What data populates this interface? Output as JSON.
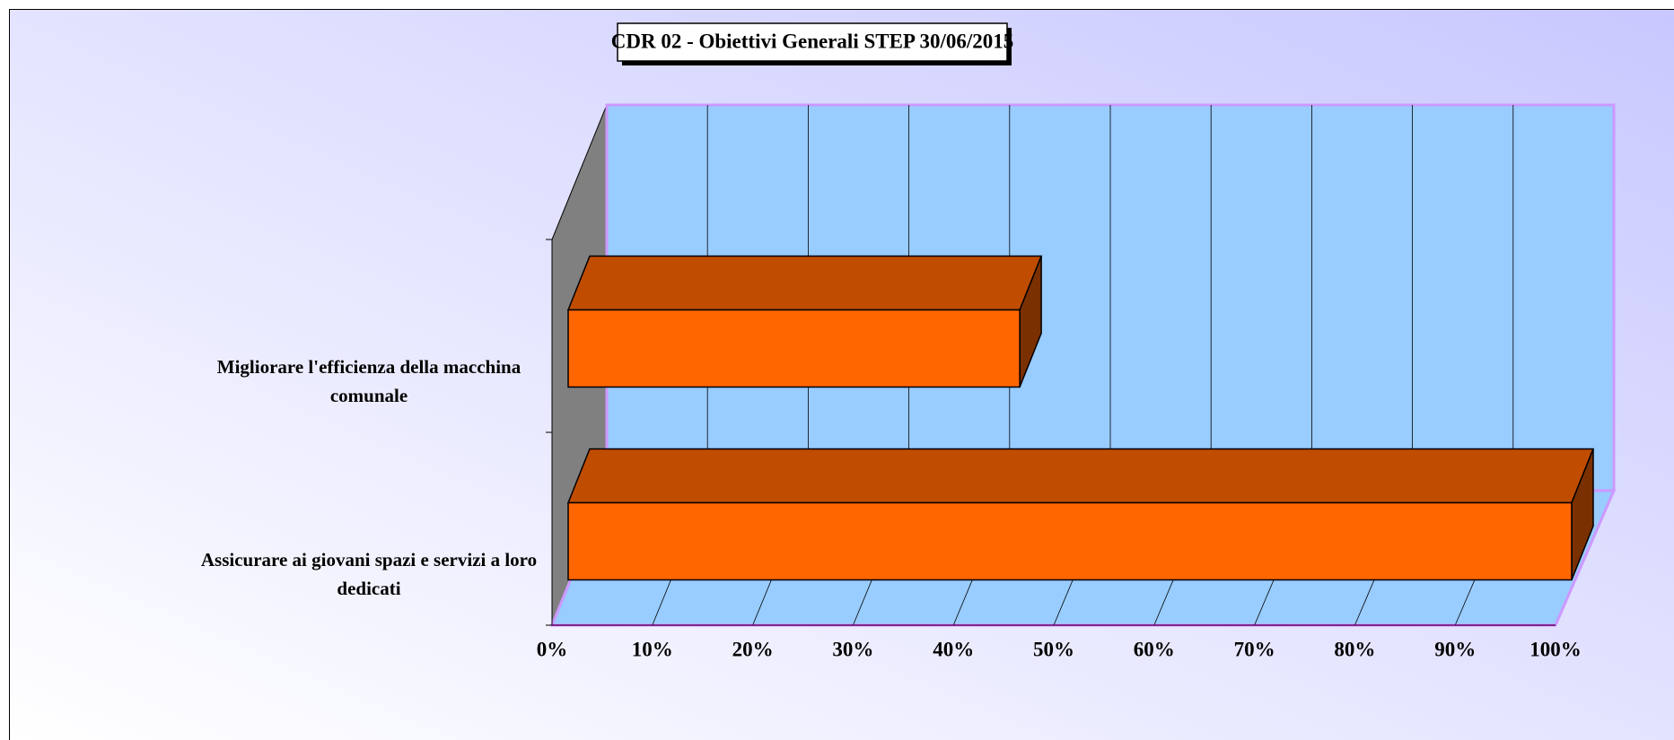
{
  "chart_data": {
    "type": "bar3d_horizontal",
    "title": "CDR 02 - Obiettivi Generali STEP 30/06/2015",
    "categories": [
      "Assicurare ai giovani spazi e servizi a loro dedicati",
      "Migliorare l'efficienza della macchina comunale"
    ],
    "values": [
      100,
      45
    ],
    "color": "#ff6600",
    "xlim": [
      0,
      100
    ],
    "xticks": [
      {
        "value": 0,
        "label": "0%"
      },
      {
        "value": 10,
        "label": "10%"
      },
      {
        "value": 20,
        "label": "20%"
      },
      {
        "value": 30,
        "label": "30%"
      },
      {
        "value": 40,
        "label": "40%"
      },
      {
        "value": 50,
        "label": "50%"
      },
      {
        "value": 60,
        "label": "60%"
      },
      {
        "value": 70,
        "label": "70%"
      },
      {
        "value": 80,
        "label": "80%"
      },
      {
        "value": 90,
        "label": "90%"
      },
      {
        "value": 100,
        "label": "100%"
      }
    ],
    "grid": true
  }
}
